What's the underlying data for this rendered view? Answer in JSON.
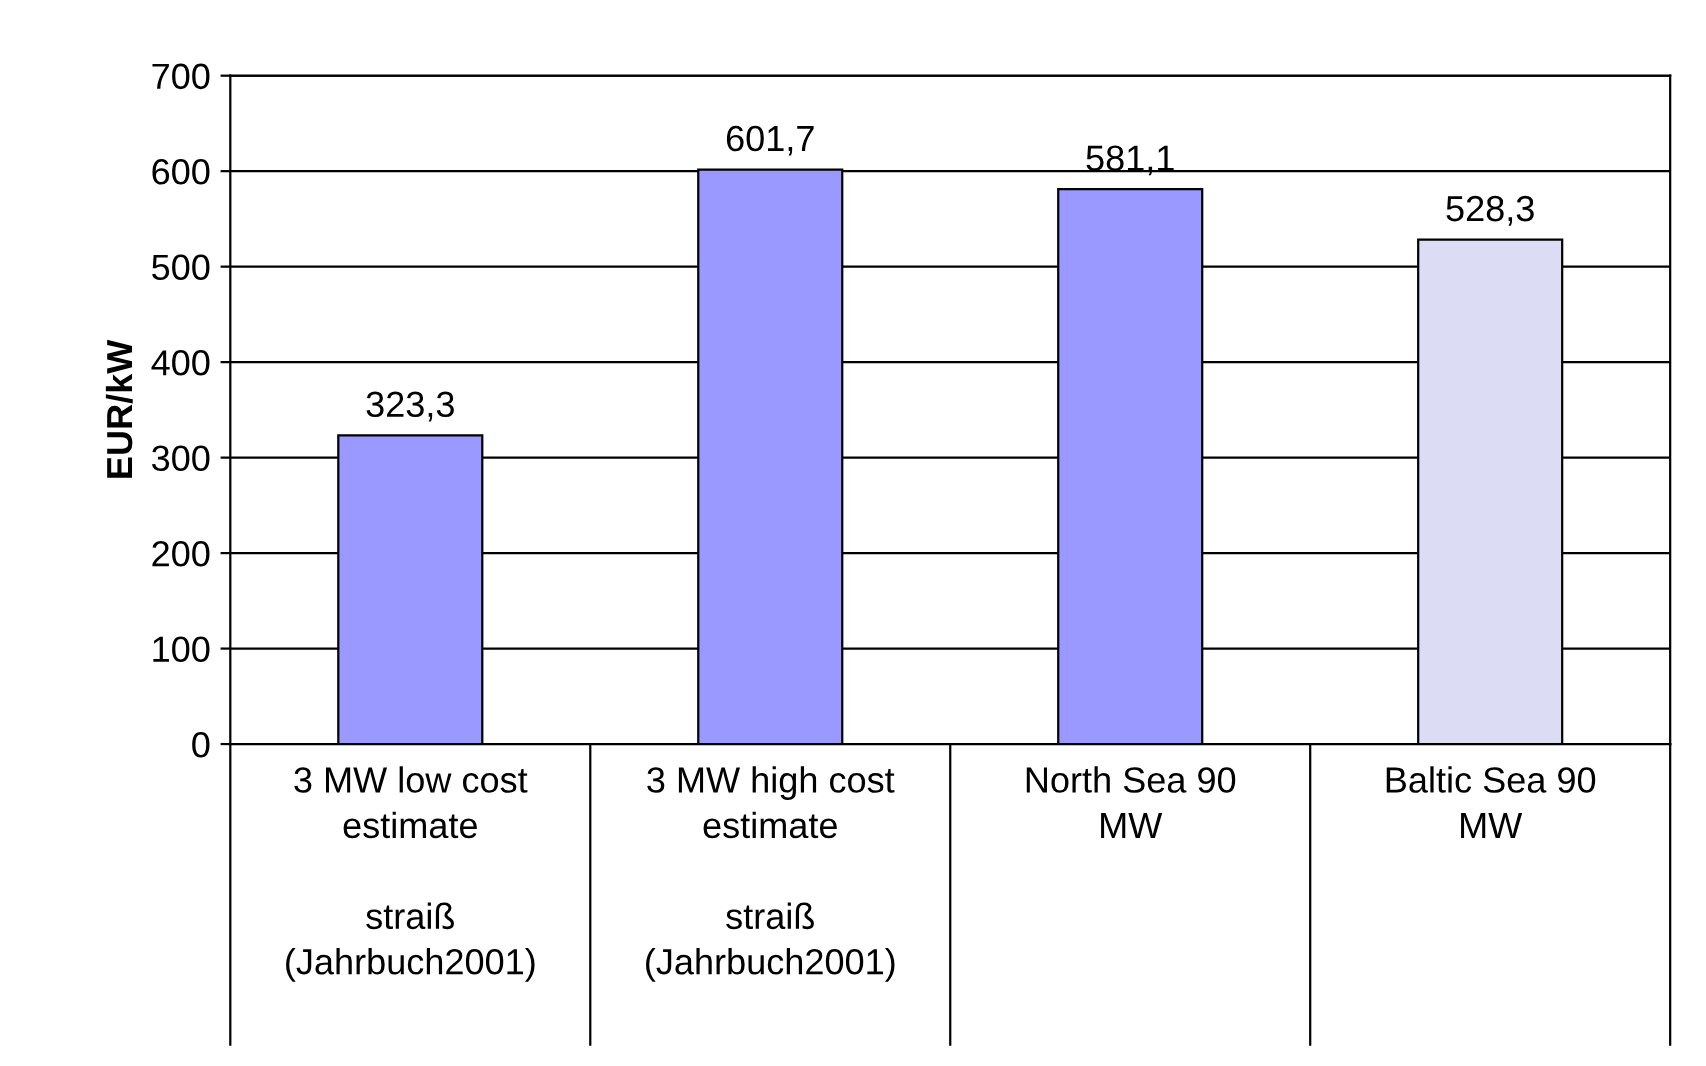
{
  "chart_data": {
    "type": "bar",
    "ylabel": "EUR/kW",
    "categories": [
      "3 MW low cost\nestimate\n\nstraiß\n(Jahrbuch2001)",
      "3 MW high cost\nestimate\n\nstraiß\n(Jahrbuch2001)",
      "North Sea 90\nMW",
      "Baltic Sea 90\nMW"
    ],
    "values": [
      323.3,
      601.7,
      581.1,
      528.3
    ],
    "value_labels": [
      "323,3",
      "601,7",
      "581,1",
      "528,3"
    ],
    "colors": [
      "#9999ff",
      "#9999ff",
      "#9999ff",
      "#dcdcf4"
    ],
    "ylim": [
      0,
      700
    ],
    "yticks": [
      0,
      100,
      200,
      300,
      400,
      500,
      600,
      700
    ],
    "grid": "y"
  }
}
